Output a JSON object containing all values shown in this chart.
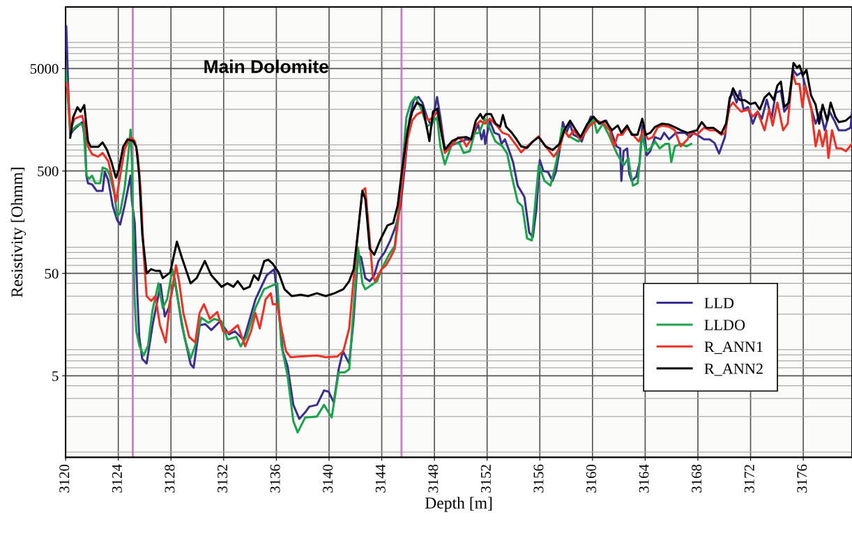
{
  "chart_data": {
    "type": "line",
    "xlabel": "Depth [m]",
    "ylabel": "Resistivity [Ohmm]",
    "log": "y",
    "xlim": [
      3120,
      3179.7
    ],
    "xticks": [
      3120,
      3124,
      3128,
      3132,
      3136,
      3140,
      3144,
      3148,
      3152,
      3156,
      3160,
      3164,
      3168,
      3172,
      3176
    ],
    "ylim": [
      0.8,
      20000
    ],
    "yticks": [
      5,
      50,
      500,
      5000
    ],
    "grid": true,
    "legend": "bottom right",
    "marker": "none",
    "line_style": "solid",
    "annotations": [
      "Main Dolomite"
    ],
    "ref_lines": [
      {
        "axis": "x",
        "value": 3125.1,
        "color": "#c77dc7"
      },
      {
        "axis": "x",
        "value": 3145.5,
        "color": "#c77dc7"
      }
    ],
    "series": [
      {
        "name": "LLD",
        "color": "#3a2f8f",
        "x": [
          3120.0,
          3120.05,
          3120.2,
          3120.35,
          3120.58,
          3121.25,
          3121.47,
          3121.58,
          3121.7,
          3122.01,
          3122.36,
          3122.81,
          3122.97,
          3123.23,
          3123.59,
          3123.92,
          3124.14,
          3124.48,
          3124.93,
          3125.04,
          3125.25,
          3125.44,
          3125.59,
          3125.82,
          3126.15,
          3126.6,
          3127.21,
          3127.53,
          3127.83,
          3128.27,
          3128.83,
          3129.49,
          3129.72,
          3130.18,
          3130.6,
          3131.06,
          3131.72,
          3132.41,
          3132.85,
          3133.52,
          3134.42,
          3135.27,
          3135.84,
          3136.17,
          3136.49,
          3136.85,
          3137.29,
          3137.74,
          3138.19,
          3138.5,
          3139.08,
          3139.62,
          3139.97,
          3140.36,
          3140.73,
          3141.05,
          3141.53,
          3141.85,
          3142.2,
          3142.43,
          3142.75,
          3143.09,
          3143.43,
          3143.75,
          3144.21,
          3144.65,
          3145.08,
          3145.43,
          3145.77,
          3146.09,
          3146.44,
          3146.78,
          3147.09,
          3147.44,
          3147.78,
          3148.2,
          3148.45,
          3148.79,
          3149.37,
          3150.43,
          3150.79,
          3151.32,
          3151.58,
          3151.76,
          3151.85,
          3152.2,
          3152.56,
          3152.91,
          3153.09,
          3153.35,
          3153.61,
          3153.97,
          3154.32,
          3154.83,
          3155.2,
          3155.47,
          3155.74,
          3156.0,
          3156.27,
          3156.62,
          3156.96,
          3157.22,
          3157.49,
          3157.75,
          3158.02,
          3158.28,
          3158.55,
          3158.92,
          3159.18,
          3159.54,
          3159.87,
          3160.14,
          3160.6,
          3161.04,
          3161.39,
          3161.83,
          3162.1,
          3162.19,
          3162.36,
          3162.63,
          3162.79,
          3162.98,
          3163.32,
          3163.58,
          3163.78,
          3163.96,
          3164.11,
          3164.38,
          3164.75,
          3165.17,
          3165.44,
          3165.81,
          3166.34,
          3167.03,
          3167.4,
          3167.67,
          3167.93,
          3168.46,
          3168.89,
          3169.26,
          3169.61,
          3170.05,
          3170.41,
          3170.67,
          3170.94,
          3171.2,
          3171.47,
          3171.8,
          3172.17,
          3172.53,
          3172.86,
          3173.23,
          3173.59,
          3173.92,
          3174.3,
          3174.56,
          3174.82,
          3175.25,
          3175.53,
          3175.89,
          3176.24,
          3176.57,
          3176.94,
          3177.3,
          3177.63,
          3178.0,
          3178.36,
          3178.69,
          3179.22,
          3179.59,
          3179.7
        ],
        "values": [
          7500,
          13000,
          3200,
          1130,
          1250,
          1500,
          1050,
          450,
          380,
          370,
          320,
          320,
          490,
          410,
          225,
          165,
          150,
          230,
          450,
          250,
          155,
          32,
          12,
          7.3,
          6.6,
          15.6,
          39,
          19,
          23,
          45,
          15.6,
          6.5,
          6,
          15.6,
          16,
          14,
          17,
          12.7,
          13.6,
          11.2,
          28,
          48,
          55,
          22,
          8.7,
          6.2,
          2.6,
          1.9,
          2.2,
          2.5,
          2.6,
          3.6,
          3.5,
          2.75,
          5.8,
          8.7,
          6.6,
          17,
          76,
          72,
          45,
          42,
          48,
          66,
          80,
          105,
          147,
          230,
          580,
          1560,
          2490,
          2640,
          2320,
          1670,
          1370,
          2640,
          1670,
          810,
          900,
          1020,
          1000,
          1430,
          1020,
          1250,
          920,
          1550,
          1180,
          1130,
          920,
          1020,
          830,
          610,
          360,
          280,
          125,
          113,
          212,
          640,
          500,
          490,
          400,
          490,
          780,
          1500,
          1180,
          1450,
          1130,
          1070,
          970,
          1320,
          1700,
          1620,
          1450,
          1550,
          1250,
          870,
          830,
          400,
          780,
          830,
          470,
          400,
          440,
          610,
          1390,
          1130,
          710,
          780,
          1070,
          1020,
          1180,
          1020,
          1180,
          1180,
          1070,
          1180,
          1130,
          1020,
          1020,
          940,
          740,
          1070,
          2600,
          2900,
          2330,
          3040,
          1990,
          2110,
          1450,
          1900,
          1620,
          2490,
          1620,
          2900,
          3040,
          1900,
          2110,
          4800,
          4300,
          4600,
          3040,
          2110,
          1450,
          1900,
          1250,
          1900,
          1550,
          1250,
          1250,
          1320,
          1900
        ]
      },
      {
        "name": "LLDO",
        "color": "#1aa34a",
        "x": [
          3120.0,
          3120.05,
          3120.24,
          3120.35,
          3120.8,
          3121.11,
          3121.36,
          3121.58,
          3121.8,
          3122.01,
          3122.25,
          3122.63,
          3122.81,
          3123.13,
          3123.36,
          3123.7,
          3123.92,
          3124.14,
          3124.48,
          3124.77,
          3124.93,
          3125.04,
          3125.22,
          3125.37,
          3125.59,
          3125.93,
          3126.26,
          3126.6,
          3127.05,
          3127.37,
          3127.71,
          3128.11,
          3128.48,
          3129.06,
          3129.49,
          3129.84,
          3130.29,
          3130.84,
          3131.29,
          3131.84,
          3132.29,
          3132.96,
          3133.29,
          3133.73,
          3134.41,
          3135.06,
          3136.07,
          3136.38,
          3136.84,
          3137.29,
          3137.62,
          3138.19,
          3139.08,
          3139.62,
          3140.2,
          3140.73,
          3141.19,
          3141.53,
          3142.2,
          3142.53,
          3142.75,
          3143.65,
          3143.99,
          3144.55,
          3144.99,
          3145.43,
          3145.87,
          3146.21,
          3146.55,
          3146.99,
          3147.44,
          3147.78,
          3148.2,
          3148.45,
          3148.79,
          3149.34,
          3149.9,
          3150.22,
          3150.68,
          3151.04,
          3151.39,
          3151.83,
          3152.1,
          3152.63,
          3153.16,
          3153.52,
          3153.88,
          3154.32,
          3154.68,
          3155.03,
          3155.39,
          3155.65,
          3155.92,
          3156.36,
          3156.81,
          3157.25,
          3157.69,
          3158.22,
          3158.93,
          3159.55,
          3160.08,
          3160.34,
          3160.79,
          3161.23,
          3161.85,
          3162.38,
          3162.72,
          3162.9,
          3163.07,
          3163.43,
          3163.77,
          3164.04,
          3164.39,
          3164.75,
          3165.1,
          3165.54,
          3165.81,
          3165.98,
          3166.25,
          3166.69,
          3167.13,
          3167.49
        ],
        "values": [
          4800,
          4200,
          1900,
          1200,
          1370,
          1450,
          1370,
          450,
          420,
          450,
          380,
          380,
          540,
          520,
          450,
          300,
          180,
          195,
          340,
          750,
          1270,
          580,
          32,
          13.6,
          9.9,
          7.9,
          9.9,
          22,
          40,
          23,
          28,
          55,
          30,
          11.3,
          7.4,
          9.9,
          18.5,
          16.5,
          18,
          17,
          11.3,
          12,
          9.7,
          12,
          23,
          35,
          40,
          9.9,
          5.1,
          1.8,
          1.4,
          1.96,
          2.0,
          2.6,
          1.96,
          5.4,
          5.4,
          5.8,
          90,
          40,
          35,
          42,
          55,
          76,
          93,
          320,
          1670,
          2320,
          2640,
          2030,
          1370,
          1450,
          1670,
          870,
          580,
          930,
          930,
          750,
          780,
          1160,
          1180,
          1620,
          1390,
          970,
          870,
          740,
          440,
          250,
          225,
          110,
          105,
          240,
          570,
          400,
          360,
          610,
          1320,
          1090,
          970,
          1280,
          1620,
          1180,
          1450,
          1130,
          740,
          570,
          670,
          470,
          360,
          380,
          1130,
          780,
          830,
          970,
          830,
          920,
          920,
          610,
          870,
          920,
          870,
          920
        ]
      },
      {
        "name": "R_ANN1",
        "color": "#ee3124",
        "x": [
          3120.0,
          3120.13,
          3120.35,
          3120.69,
          3121.25,
          3121.47,
          3121.7,
          3122.01,
          3122.47,
          3122.81,
          3123.25,
          3123.58,
          3123.82,
          3124.14,
          3124.48,
          3124.81,
          3125.04,
          3125.25,
          3125.48,
          3125.7,
          3125.93,
          3126.15,
          3126.49,
          3126.82,
          3127.16,
          3127.6,
          3127.94,
          3128.38,
          3128.61,
          3128.94,
          3129.38,
          3129.84,
          3130.17,
          3130.5,
          3130.95,
          3131.51,
          3131.96,
          3132.41,
          3133.07,
          3133.63,
          3134.08,
          3134.41,
          3134.74,
          3135.19,
          3135.57,
          3135.73,
          3136.07,
          3136.38,
          3136.73,
          3137.07,
          3137.74,
          3139.08,
          3139.75,
          3140.62,
          3141.08,
          3141.53,
          3141.87,
          3142.2,
          3142.53,
          3142.75,
          3142.98,
          3143.31,
          3143.49,
          3143.99,
          3144.32,
          3144.65,
          3144.99,
          3145.32,
          3145.66,
          3145.98,
          3146.32,
          3146.66,
          3147.09,
          3147.55,
          3147.89,
          3148.22,
          3148.56,
          3148.79,
          3149.23,
          3149.79,
          3150.22,
          3150.43,
          3150.79,
          3151.14,
          3151.49,
          3151.85,
          3152.2,
          3152.73,
          3153.17,
          3153.61,
          3154.14,
          3154.58,
          3155.03,
          3155.47,
          3155.91,
          3156.44,
          3157.06,
          3157.5,
          3157.86,
          3158.21,
          3158.56,
          3159.09,
          3159.8,
          3160.33,
          3160.86,
          3161.3,
          3161.65,
          3161.92,
          3162.27,
          3162.63,
          3163.07,
          3163.51,
          3163.86,
          3164.22,
          3164.57,
          3164.92,
          3165.28,
          3165.81,
          3166.25,
          3166.69,
          3167.22,
          3167.4,
          3167.93,
          3168.46,
          3168.9,
          3169.34,
          3169.78,
          3170.05,
          3170.41,
          3170.67,
          3170.94,
          3171.29,
          3171.82,
          3172.17,
          3172.53,
          3173.06,
          3173.41,
          3173.68,
          3174.03,
          3174.47,
          3174.82,
          3175.18,
          3175.44,
          3175.71,
          3175.94,
          3176.15,
          3176.59,
          3176.94,
          3177.21,
          3177.47,
          3177.74,
          3177.91,
          3178.18,
          3178.53,
          3178.89,
          3179.24,
          3179.7
        ],
        "values": [
          3430,
          3650,
          1280,
          1620,
          1730,
          1370,
          860,
          730,
          690,
          750,
          620,
          390,
          250,
          450,
          810,
          1020,
          1050,
          980,
          710,
          320,
          76,
          30,
          27,
          30,
          15.6,
          10.6,
          27,
          60,
          42,
          20.5,
          12,
          10.6,
          20.5,
          25,
          18,
          21,
          13.6,
          13.2,
          15.6,
          9.7,
          13.6,
          20.5,
          14.5,
          28,
          32,
          25,
          25,
          14.5,
          8.7,
          7.6,
          7.7,
          7.9,
          7.6,
          7.7,
          8.7,
          14.5,
          45,
          128,
          320,
          340,
          155,
          48,
          42,
          55,
          60,
          71,
          87,
          200,
          510,
          1050,
          1560,
          1780,
          1900,
          1560,
          1670,
          1900,
          1200,
          750,
          860,
          1060,
          980,
          870,
          1020,
          1390,
          1550,
          1450,
          1620,
          1390,
          1180,
          1130,
          920,
          760,
          870,
          970,
          1090,
          870,
          690,
          830,
          1230,
          1070,
          1250,
          1020,
          1390,
          1550,
          1450,
          1250,
          870,
          1130,
          1130,
          1320,
          1130,
          970,
          1250,
          1020,
          1070,
          1320,
          1390,
          1350,
          1250,
          870,
          1020,
          1180,
          1130,
          1320,
          1250,
          1250,
          1130,
          1180,
          2110,
          2330,
          2110,
          1900,
          1990,
          1700,
          1900,
          1250,
          1990,
          1390,
          2330,
          1250,
          1450,
          4600,
          3540,
          3540,
          2110,
          3400,
          2110,
          870,
          1250,
          870,
          1250,
          670,
          1250,
          830,
          830,
          780,
          920
        ]
      },
      {
        "name": "R_ANN2",
        "color": "#000000",
        "x": [
          3120.35,
          3120.57,
          3120.9,
          3121.13,
          3121.42,
          3121.7,
          3121.91,
          3122.47,
          3122.81,
          3123.13,
          3123.47,
          3123.82,
          3124.03,
          3124.37,
          3124.7,
          3125.14,
          3125.37,
          3125.59,
          3125.82,
          3126.15,
          3126.49,
          3126.82,
          3127.16,
          3127.38,
          3127.94,
          3128.45,
          3128.83,
          3129.49,
          3129.95,
          3130.57,
          3131.06,
          3131.84,
          3132.29,
          3132.74,
          3133.07,
          3133.52,
          3133.97,
          3134.3,
          3134.63,
          3135.08,
          3135.4,
          3135.73,
          3136.17,
          3136.62,
          3137.18,
          3137.85,
          3138.4,
          3139.08,
          3139.75,
          3140.41,
          3141.08,
          3141.53,
          3141.87,
          3142.2,
          3142.53,
          3142.76,
          3143.09,
          3143.43,
          3143.87,
          3144.43,
          3144.87,
          3145.21,
          3145.54,
          3145.98,
          3146.32,
          3146.66,
          3147.09,
          3147.49,
          3147.62,
          3147.89,
          3148.22,
          3148.56,
          3148.79,
          3149.34,
          3149.9,
          3150.43,
          3150.79,
          3151.14,
          3151.49,
          3151.67,
          3151.93,
          3152.29,
          3152.64,
          3152.99,
          3153.2,
          3153.44,
          3153.88,
          3154.23,
          3154.58,
          3155.03,
          3155.47,
          3155.91,
          3156.44,
          3156.97,
          3157.5,
          3157.86,
          3158.3,
          3158.74,
          3159.09,
          3159.62,
          3160.07,
          3160.51,
          3160.95,
          3161.48,
          3161.92,
          3162.19,
          3162.63,
          3162.98,
          3163.42,
          3163.78,
          3164.04,
          3164.39,
          3164.75,
          3165.28,
          3165.81,
          3166.34,
          3166.69,
          3167.22,
          3167.93,
          3168.29,
          3168.64,
          3169.17,
          3169.78,
          3170.14,
          3170.41,
          3170.67,
          3170.94,
          3171.2,
          3171.55,
          3172.0,
          3172.35,
          3172.7,
          3173.06,
          3173.41,
          3173.76,
          3174.03,
          3174.3,
          3174.56,
          3174.91,
          3175.26,
          3175.53,
          3175.71,
          3175.97,
          3176.24,
          3176.59,
          3176.94,
          3177.21,
          3177.47,
          3177.82,
          3178.08,
          3178.43,
          3178.7,
          3179.22,
          3179.59
        ],
        "values": [
          1060,
          1670,
          2100,
          1900,
          2200,
          980,
          860,
          860,
          950,
          810,
          620,
          430,
          510,
          860,
          1020,
          980,
          860,
          450,
          120,
          50,
          55,
          53,
          53,
          45,
          51,
          102,
          71,
          40,
          45,
          66,
          48,
          37,
          40,
          37,
          42,
          35,
          37,
          48,
          43,
          66,
          68,
          62,
          51,
          35,
          30,
          31,
          30,
          32,
          30,
          32,
          35,
          42,
          55,
          128,
          320,
          265,
          87,
          76,
          105,
          147,
          155,
          230,
          510,
          1280,
          1900,
          2320,
          2160,
          1200,
          980,
          1900,
          2030,
          1120,
          810,
          980,
          1060,
          1070,
          1020,
          1550,
          1800,
          1620,
          1800,
          1800,
          1450,
          1350,
          1760,
          1350,
          1180,
          1020,
          870,
          840,
          970,
          1070,
          870,
          800,
          920,
          1250,
          1550,
          1250,
          1070,
          1450,
          1700,
          1450,
          1550,
          1250,
          1390,
          1180,
          1390,
          1130,
          1130,
          1620,
          1130,
          1180,
          1350,
          1450,
          1420,
          1320,
          1250,
          1180,
          1250,
          1500,
          1320,
          1320,
          1160,
          1450,
          2460,
          3210,
          2740,
          2460,
          2460,
          2250,
          2330,
          1990,
          2600,
          2880,
          2460,
          3400,
          3730,
          2110,
          2330,
          5670,
          5100,
          5380,
          4300,
          4850,
          2740,
          2220,
          1450,
          2220,
          1550,
          2330,
          1700,
          1500,
          1550,
          1700
        ]
      }
    ]
  }
}
